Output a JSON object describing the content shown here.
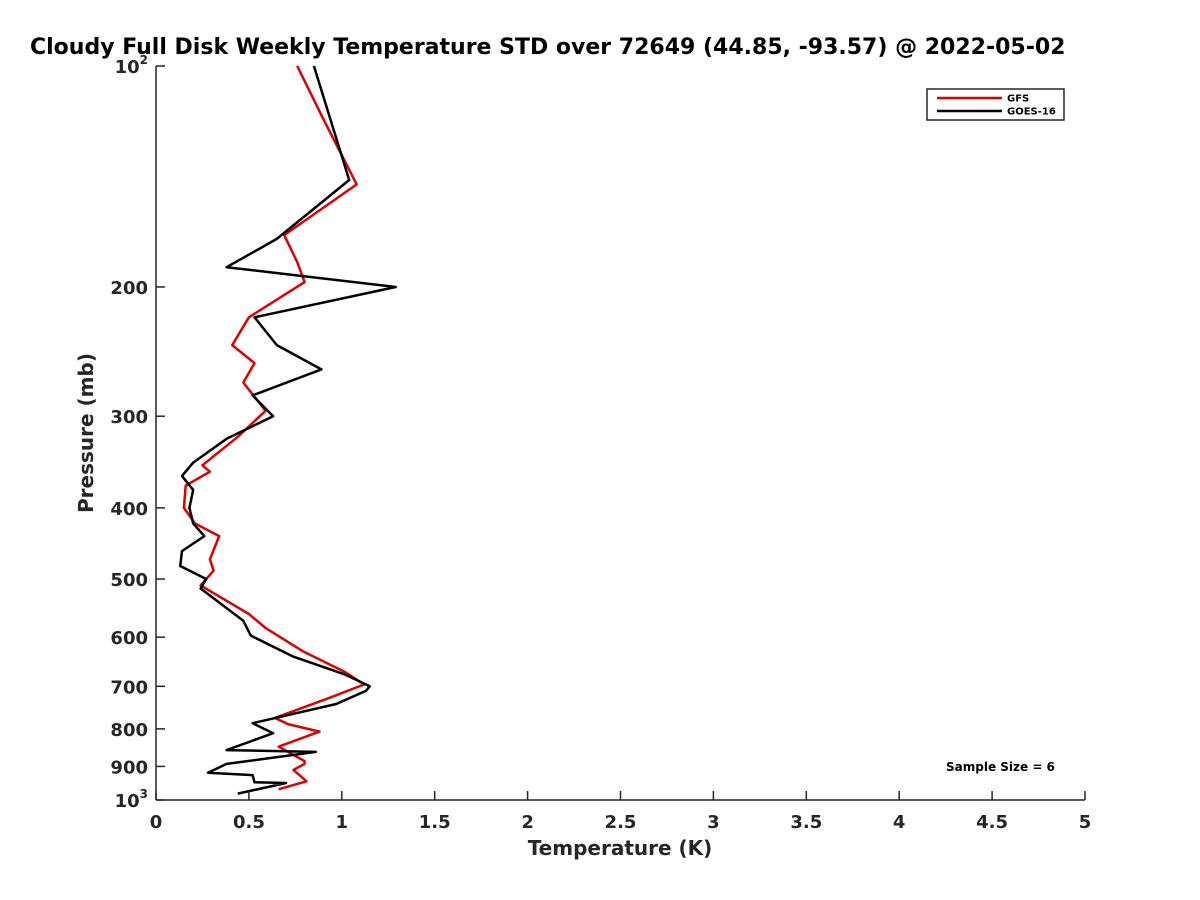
{
  "chart_data": {
    "type": "line",
    "title": "Cloudy Full Disk Weekly Temperature STD over 72649 (44.85, -93.57) @ 2022-05-02",
    "xlabel": "Temperature (K)",
    "ylabel": "Pressure (mb)",
    "xlim": [
      0,
      5
    ],
    "ylim": [
      100,
      1000
    ],
    "y_scale": "log",
    "y_reversed": true,
    "grid": false,
    "legend_position": "top-right",
    "x_ticks": [
      {
        "value": 0,
        "label": "0"
      },
      {
        "value": 0.5,
        "label": "0.5"
      },
      {
        "value": 1,
        "label": "1"
      },
      {
        "value": 1.5,
        "label": "1.5"
      },
      {
        "value": 2,
        "label": "2"
      },
      {
        "value": 2.5,
        "label": "2.5"
      },
      {
        "value": 3,
        "label": "3"
      },
      {
        "value": 3.5,
        "label": "3.5"
      },
      {
        "value": 4,
        "label": "4"
      },
      {
        "value": 4.5,
        "label": "4.5"
      },
      {
        "value": 5,
        "label": "5"
      }
    ],
    "y_ticks": [
      {
        "value": 100,
        "base": "10",
        "exp": "2"
      },
      {
        "value": 200,
        "label": "200"
      },
      {
        "value": 300,
        "label": "300"
      },
      {
        "value": 400,
        "label": "400"
      },
      {
        "value": 500,
        "label": "500"
      },
      {
        "value": 600,
        "label": "600"
      },
      {
        "value": 700,
        "label": "700"
      },
      {
        "value": 800,
        "label": "800"
      },
      {
        "value": 900,
        "label": "900"
      },
      {
        "value": 1000,
        "base": "10",
        "exp": "3"
      }
    ],
    "series": [
      {
        "name": "GFS",
        "color": "#e00000",
        "points": [
          [
            0.76,
            100
          ],
          [
            0.9,
            118
          ],
          [
            1.08,
            145
          ],
          [
            0.69,
            170
          ],
          [
            0.76,
            185
          ],
          [
            0.8,
            197
          ],
          [
            0.5,
            220
          ],
          [
            0.41,
            240
          ],
          [
            0.53,
            254
          ],
          [
            0.47,
            270
          ],
          [
            0.59,
            295
          ],
          [
            0.44,
            320
          ],
          [
            0.25,
            350
          ],
          [
            0.29,
            357
          ],
          [
            0.16,
            373
          ],
          [
            0.15,
            400
          ],
          [
            0.21,
            420
          ],
          [
            0.34,
            437
          ],
          [
            0.29,
            470
          ],
          [
            0.31,
            487
          ],
          [
            0.24,
            510
          ],
          [
            0.5,
            558
          ],
          [
            0.59,
            583
          ],
          [
            0.79,
            627
          ],
          [
            1.02,
            670
          ],
          [
            1.12,
            696
          ],
          [
            0.92,
            728
          ],
          [
            0.64,
            773
          ],
          [
            0.71,
            788
          ],
          [
            0.88,
            807
          ],
          [
            0.66,
            846
          ],
          [
            0.8,
            885
          ],
          [
            0.8,
            893
          ],
          [
            0.74,
            910
          ],
          [
            0.81,
            943
          ],
          [
            0.66,
            967
          ]
        ]
      },
      {
        "name": "GOES-16",
        "color": "#000000",
        "points": [
          [
            0.85,
            100
          ],
          [
            1.04,
            143
          ],
          [
            0.65,
            172
          ],
          [
            0.38,
            188
          ],
          [
            1.29,
            200
          ],
          [
            0.53,
            220
          ],
          [
            0.65,
            240
          ],
          [
            0.89,
            259
          ],
          [
            0.52,
            281
          ],
          [
            0.63,
            300
          ],
          [
            0.38,
            322
          ],
          [
            0.2,
            347
          ],
          [
            0.14,
            362
          ],
          [
            0.2,
            378
          ],
          [
            0.18,
            400
          ],
          [
            0.2,
            420
          ],
          [
            0.26,
            437
          ],
          [
            0.14,
            458
          ],
          [
            0.13,
            480
          ],
          [
            0.27,
            500
          ],
          [
            0.24,
            515
          ],
          [
            0.47,
            570
          ],
          [
            0.51,
            597
          ],
          [
            0.74,
            638
          ],
          [
            1.02,
            675
          ],
          [
            1.15,
            700
          ],
          [
            1.13,
            710
          ],
          [
            0.97,
            740
          ],
          [
            0.52,
            786
          ],
          [
            0.63,
            811
          ],
          [
            0.38,
            855
          ],
          [
            0.86,
            860
          ],
          [
            0.38,
            893
          ],
          [
            0.28,
            918
          ],
          [
            0.52,
            925
          ],
          [
            0.53,
            946
          ],
          [
            0.7,
            948
          ],
          [
            0.44,
            980
          ]
        ]
      }
    ],
    "annotation": "Sample Size = 6"
  }
}
